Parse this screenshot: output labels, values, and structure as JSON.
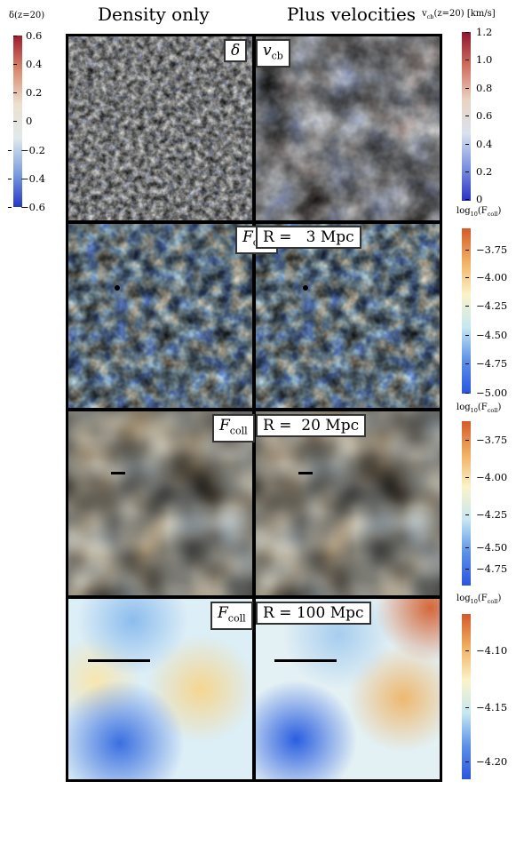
{
  "figure": {
    "column_titles": [
      "Density only",
      "Plus velocities"
    ],
    "row_labels": [
      {
        "left": "δ",
        "right": "v",
        "right_sub": "cb"
      },
      {
        "left": "F",
        "left_sub": "coll",
        "right": "R =   3 Mpc"
      },
      {
        "left": "F",
        "left_sub": "coll",
        "right": "R =  20 Mpc"
      },
      {
        "left": "F",
        "left_sub": "coll",
        "right": "R = 100 Mpc"
      }
    ]
  },
  "colorbars": {
    "density": {
      "title": "δ(z=20)",
      "ticks": [
        "0.6",
        "0.4",
        "0.2",
        "0",
        "−0.2",
        "−0.4",
        "−0.6"
      ],
      "colors": [
        "#9e1b2f",
        "#d8896e",
        "#ece0cf",
        "#dfe9ea",
        "#7e9fe0",
        "#2536c8"
      ]
    },
    "velocity": {
      "title": "v",
      "title_sub": "cb",
      "title_suffix": "(z=20) [km/s]",
      "ticks": [
        "1.2",
        "1.0",
        "0.8",
        "0.6",
        "0.4",
        "0.2",
        "0"
      ],
      "colors": [
        "#8e1530",
        "#cf6f5e",
        "#ead2c1",
        "#d9e2ee",
        "#7d93de",
        "#2a32c3"
      ]
    },
    "fcoll_3": {
      "title": "log",
      "title_sub": "10",
      "title_suffix": "(F",
      "title_sub2": "coll",
      "title_end": ")",
      "ticks": [
        "−3.75",
        "−4.00",
        "−4.25",
        "−4.50",
        "−4.75",
        "−5.00"
      ],
      "colors": [
        "#d45a2a",
        "#f0b060",
        "#fbf3c8",
        "#c6e7f2",
        "#5c90e6",
        "#2a55e0"
      ]
    },
    "fcoll_20": {
      "title": "log",
      "title_sub": "10",
      "title_suffix": "(F",
      "title_sub2": "coll",
      "title_end": ")",
      "ticks": [
        "−3.75",
        "−4.00",
        "−4.25",
        "−4.50",
        "−4.75"
      ],
      "colors": [
        "#d45a2a",
        "#f0b060",
        "#fbf3c8",
        "#c6e7f2",
        "#5c90e6",
        "#2a55e0"
      ]
    },
    "fcoll_100": {
      "title": "log",
      "title_sub": "10",
      "title_suffix": "(F",
      "title_sub2": "coll",
      "title_end": ")",
      "ticks": [
        "−4.10",
        "−4.15",
        "−4.20"
      ],
      "colors": [
        "#d45a2a",
        "#f0b060",
        "#fbf3c8",
        "#c6e7f2",
        "#5c90e6",
        "#2a55e0"
      ]
    }
  }
}
